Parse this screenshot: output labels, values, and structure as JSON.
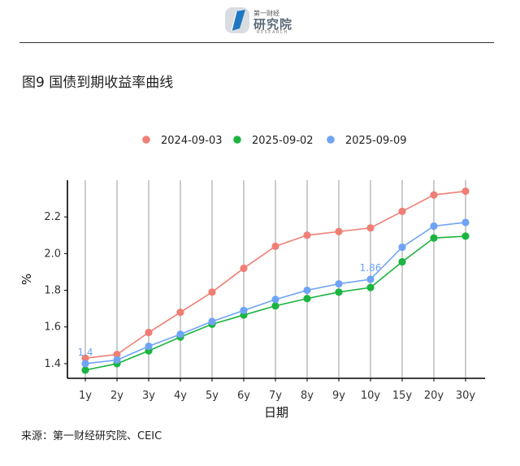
{
  "header": {
    "logo_top": "第一财经",
    "logo_main": "研究院",
    "logo_sub": "RESEARCH"
  },
  "figure_title": "图9 国债到期收益率曲线",
  "source": "来源：第一财经研究院、CEIC",
  "chart_data": {
    "type": "line",
    "xlabel": "日期",
    "ylabel": "%",
    "categories": [
      "1y",
      "2y",
      "3y",
      "4y",
      "5y",
      "6y",
      "7y",
      "8y",
      "9y",
      "10y",
      "15y",
      "20y",
      "30y"
    ],
    "ylim": [
      1.32,
      2.4
    ],
    "yticks": [
      1.4,
      1.6,
      1.8,
      2.0,
      2.2
    ],
    "ytick_labels": [
      "1.4",
      "1.6",
      "1.8",
      "2.0",
      "2.2"
    ],
    "grid": "vertical",
    "legend_position": "top",
    "series": [
      {
        "name": "2024-09-03",
        "color": "#F07E75",
        "values": [
          1.43,
          1.45,
          1.57,
          1.68,
          1.79,
          1.92,
          2.04,
          2.1,
          2.12,
          2.14,
          2.23,
          2.32,
          2.34
        ]
      },
      {
        "name": "2025-09-02",
        "color": "#1AB43F",
        "values": [
          1.365,
          1.4,
          1.47,
          1.545,
          1.615,
          1.665,
          1.715,
          1.755,
          1.79,
          1.815,
          1.955,
          2.085,
          2.095
        ]
      },
      {
        "name": "2025-09-09",
        "color": "#6FA3F6",
        "values": [
          1.4,
          1.42,
          1.495,
          1.56,
          1.63,
          1.69,
          1.75,
          1.8,
          1.835,
          1.86,
          2.035,
          2.15,
          2.17
        ]
      }
    ],
    "annotations": [
      {
        "text": "1.4",
        "series": 2,
        "index": 0
      },
      {
        "text": "1.86",
        "series": 2,
        "index": 9
      }
    ]
  }
}
